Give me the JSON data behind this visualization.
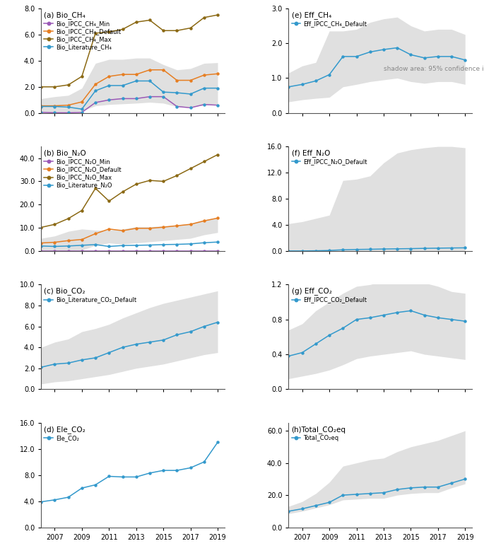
{
  "years": [
    2006,
    2007,
    2008,
    2009,
    2010,
    2011,
    2012,
    2013,
    2014,
    2015,
    2016,
    2017,
    2018,
    2019
  ],
  "a_bio_ch4_min": [
    0.05,
    0.02,
    0.02,
    0.05,
    0.8,
    1.0,
    1.1,
    1.1,
    1.25,
    1.25,
    0.5,
    0.4,
    0.65,
    0.6
  ],
  "a_bio_ch4_default": [
    0.55,
    0.55,
    0.6,
    0.85,
    2.2,
    2.8,
    2.95,
    2.95,
    3.3,
    3.3,
    2.5,
    2.5,
    2.9,
    3.0
  ],
  "a_bio_ch4_max": [
    2.0,
    2.0,
    2.15,
    2.8,
    6.1,
    6.2,
    6.4,
    6.95,
    7.1,
    6.3,
    6.3,
    6.5,
    7.3,
    7.5
  ],
  "a_bio_lit_ch4": [
    0.5,
    0.5,
    0.45,
    0.3,
    1.7,
    2.1,
    2.1,
    2.45,
    2.45,
    1.6,
    1.55,
    1.45,
    1.9,
    1.9
  ],
  "a_shadow_lo": [
    0.08,
    0.08,
    0.1,
    0.15,
    0.55,
    0.65,
    0.7,
    0.75,
    0.82,
    0.75,
    0.48,
    0.48,
    0.6,
    0.68
  ],
  "a_shadow_hi": [
    1.1,
    1.25,
    1.35,
    1.9,
    3.8,
    4.1,
    4.1,
    4.2,
    4.2,
    3.7,
    3.3,
    3.4,
    3.8,
    3.85
  ],
  "b_bio_n2o_min": [
    0.0,
    0.0,
    0.0,
    0.0,
    0.0,
    0.0,
    0.0,
    0.0,
    0.0,
    0.0,
    0.0,
    0.0,
    0.0,
    0.0
  ],
  "b_bio_n2o_default": [
    3.5,
    3.8,
    4.5,
    5.0,
    7.5,
    9.5,
    8.8,
    9.8,
    9.8,
    10.3,
    10.9,
    11.5,
    13.0,
    14.2
  ],
  "b_bio_n2o_max": [
    10.2,
    11.5,
    14.0,
    17.5,
    27.0,
    21.5,
    25.5,
    28.8,
    30.4,
    30.0,
    32.5,
    35.5,
    38.5,
    41.5
  ],
  "b_bio_lit_n2o": [
    2.2,
    2.0,
    2.2,
    2.5,
    2.8,
    2.0,
    2.4,
    2.5,
    2.6,
    2.8,
    2.9,
    3.1,
    3.6,
    3.9
  ],
  "b_shadow_lo": [
    0.3,
    0.3,
    0.3,
    0.4,
    2.5,
    3.5,
    3.0,
    3.5,
    4.0,
    4.5,
    5.0,
    5.5,
    7.0,
    8.0
  ],
  "b_shadow_hi": [
    5.5,
    6.5,
    8.5,
    9.5,
    9.0,
    9.0,
    9.5,
    10.5,
    10.5,
    10.8,
    11.2,
    12.0,
    13.5,
    14.5
  ],
  "c_bio_co2": [
    2.1,
    2.4,
    2.5,
    2.8,
    3.0,
    3.5,
    4.0,
    4.3,
    4.5,
    4.7,
    5.2,
    5.5,
    6.0,
    6.4
  ],
  "c_shadow_lo": [
    0.5,
    0.7,
    0.8,
    1.0,
    1.2,
    1.4,
    1.7,
    2.0,
    2.2,
    2.4,
    2.7,
    3.0,
    3.3,
    3.5
  ],
  "c_shadow_hi": [
    4.0,
    4.5,
    4.8,
    5.5,
    5.8,
    6.2,
    6.8,
    7.3,
    7.8,
    8.2,
    8.5,
    8.8,
    9.1,
    9.4
  ],
  "d_ele_co2": [
    3.9,
    4.2,
    4.6,
    6.0,
    6.5,
    7.8,
    7.7,
    7.7,
    8.3,
    8.7,
    8.7,
    9.1,
    10.0,
    13.0
  ],
  "e_eff_ch4": [
    0.75,
    0.82,
    0.92,
    1.1,
    1.62,
    1.62,
    1.75,
    1.82,
    1.87,
    1.67,
    1.58,
    1.62,
    1.62,
    1.52
  ],
  "e_shadow_lo": [
    0.32,
    0.38,
    0.42,
    0.45,
    0.75,
    0.82,
    0.9,
    0.95,
    1.0,
    0.9,
    0.85,
    0.9,
    0.9,
    0.82
  ],
  "e_shadow_hi": [
    1.15,
    1.35,
    1.45,
    2.35,
    2.35,
    2.4,
    2.6,
    2.7,
    2.75,
    2.5,
    2.35,
    2.4,
    2.4,
    2.25
  ],
  "f_eff_n2o": [
    0.02,
    0.02,
    0.05,
    0.1,
    0.2,
    0.25,
    0.28,
    0.32,
    0.35,
    0.38,
    0.42,
    0.45,
    0.48,
    0.5
  ],
  "f_shadow_lo": [
    0.0,
    0.0,
    0.0,
    0.0,
    0.0,
    0.0,
    0.0,
    0.0,
    0.0,
    0.0,
    0.0,
    0.0,
    0.0,
    0.0
  ],
  "f_shadow_hi": [
    4.2,
    4.5,
    5.0,
    5.5,
    10.8,
    11.0,
    11.5,
    13.5,
    15.0,
    15.5,
    15.8,
    16.0,
    16.0,
    15.8
  ],
  "g_eff_co2": [
    0.38,
    0.42,
    0.52,
    0.62,
    0.7,
    0.8,
    0.82,
    0.85,
    0.88,
    0.9,
    0.85,
    0.82,
    0.8,
    0.78
  ],
  "g_shadow_lo": [
    0.12,
    0.15,
    0.18,
    0.22,
    0.28,
    0.35,
    0.38,
    0.4,
    0.42,
    0.44,
    0.4,
    0.38,
    0.36,
    0.34
  ],
  "g_shadow_hi": [
    0.68,
    0.75,
    0.9,
    1.0,
    1.1,
    1.18,
    1.2,
    1.24,
    1.28,
    1.3,
    1.22,
    1.18,
    1.12,
    1.1
  ],
  "h_total": [
    10.0,
    11.5,
    13.5,
    15.5,
    20.0,
    20.5,
    21.0,
    21.5,
    23.5,
    24.5,
    25.0,
    25.0,
    27.5,
    30.0
  ],
  "h_shadow_lo": [
    8.5,
    10.0,
    12.0,
    14.0,
    17.0,
    17.5,
    18.0,
    18.0,
    20.0,
    21.0,
    21.5,
    21.5,
    24.5,
    27.0
  ],
  "h_shadow_hi": [
    13.0,
    16.0,
    21.0,
    28.0,
    38.0,
    40.0,
    42.0,
    43.0,
    47.0,
    50.0,
    52.0,
    54.0,
    57.0,
    60.0
  ],
  "color_min": "#9b59b6",
  "color_default": "#e67e22",
  "color_max": "#8B6914",
  "color_blue": "#3399cc",
  "color_shadow": "#cccccc",
  "color_shadow_alpha": 0.6
}
